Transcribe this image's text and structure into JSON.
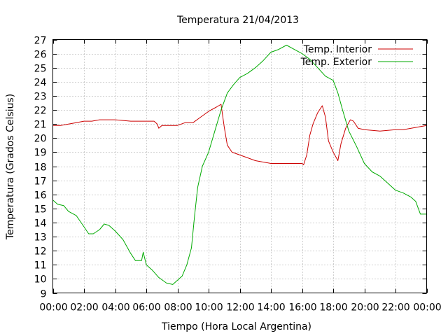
{
  "chart_data": {
    "type": "line",
    "title": "Temperatura 21/04/2013",
    "xlabel": "Tiempo (Hora Local Argentina)",
    "ylabel": "Temperatura (Grados Celsius)",
    "xlim": [
      "00:00",
      "24:00"
    ],
    "ylim": [
      9,
      27
    ],
    "grid": true,
    "legend_position": "top-right",
    "x_ticks": [
      "00:00",
      "02:00",
      "04:00",
      "06:00",
      "08:00",
      "10:00",
      "12:00",
      "14:00",
      "16:00",
      "18:00",
      "20:00",
      "22:00",
      "00:00"
    ],
    "y_ticks": [
      9,
      10,
      11,
      12,
      13,
      14,
      15,
      16,
      17,
      18,
      19,
      20,
      21,
      22,
      23,
      24,
      25,
      26,
      27
    ],
    "series": [
      {
        "name": "Temp. Interior",
        "color": "#cc0000",
        "points": [
          [
            0.0,
            20.9
          ],
          [
            0.5,
            20.9
          ],
          [
            1.0,
            21.0
          ],
          [
            1.5,
            21.1
          ],
          [
            2.0,
            21.2
          ],
          [
            2.5,
            21.2
          ],
          [
            3.0,
            21.3
          ],
          [
            4.0,
            21.3
          ],
          [
            5.0,
            21.2
          ],
          [
            6.0,
            21.2
          ],
          [
            6.5,
            21.2
          ],
          [
            6.7,
            21.0
          ],
          [
            6.8,
            20.7
          ],
          [
            7.0,
            20.9
          ],
          [
            8.0,
            20.9
          ],
          [
            8.5,
            21.1
          ],
          [
            9.0,
            21.1
          ],
          [
            9.5,
            21.5
          ],
          [
            10.0,
            21.9
          ],
          [
            10.5,
            22.2
          ],
          [
            10.8,
            22.4
          ],
          [
            11.0,
            20.8
          ],
          [
            11.2,
            19.5
          ],
          [
            11.5,
            19.0
          ],
          [
            12.0,
            18.8
          ],
          [
            12.5,
            18.6
          ],
          [
            13.0,
            18.4
          ],
          [
            14.0,
            18.2
          ],
          [
            15.0,
            18.2
          ],
          [
            16.0,
            18.2
          ],
          [
            16.1,
            18.1
          ],
          [
            16.3,
            18.8
          ],
          [
            16.5,
            20.2
          ],
          [
            16.7,
            21.0
          ],
          [
            17.0,
            21.8
          ],
          [
            17.3,
            22.3
          ],
          [
            17.5,
            21.5
          ],
          [
            17.7,
            19.8
          ],
          [
            18.0,
            19.0
          ],
          [
            18.3,
            18.4
          ],
          [
            18.5,
            19.6
          ],
          [
            18.8,
            20.7
          ],
          [
            19.1,
            21.3
          ],
          [
            19.3,
            21.2
          ],
          [
            19.6,
            20.7
          ],
          [
            20.0,
            20.6
          ],
          [
            21.0,
            20.5
          ],
          [
            22.0,
            20.6
          ],
          [
            22.5,
            20.6
          ],
          [
            23.0,
            20.7
          ],
          [
            23.5,
            20.8
          ],
          [
            24.0,
            20.9
          ]
        ]
      },
      {
        "name": "Temp. Exterior",
        "color": "#00aa00",
        "points": [
          [
            0.0,
            15.6
          ],
          [
            0.3,
            15.3
          ],
          [
            0.7,
            15.2
          ],
          [
            1.0,
            14.8
          ],
          [
            1.5,
            14.5
          ],
          [
            2.0,
            13.7
          ],
          [
            2.3,
            13.2
          ],
          [
            2.6,
            13.2
          ],
          [
            3.0,
            13.5
          ],
          [
            3.3,
            13.9
          ],
          [
            3.6,
            13.8
          ],
          [
            4.0,
            13.4
          ],
          [
            4.5,
            12.8
          ],
          [
            5.0,
            11.8
          ],
          [
            5.3,
            11.3
          ],
          [
            5.7,
            11.3
          ],
          [
            5.8,
            11.9
          ],
          [
            6.0,
            11.0
          ],
          [
            6.4,
            10.6
          ],
          [
            6.8,
            10.1
          ],
          [
            7.3,
            9.7
          ],
          [
            7.7,
            9.6
          ],
          [
            8.0,
            9.9
          ],
          [
            8.3,
            10.2
          ],
          [
            8.6,
            11.0
          ],
          [
            8.9,
            12.2
          ],
          [
            9.1,
            14.5
          ],
          [
            9.3,
            16.5
          ],
          [
            9.6,
            18.0
          ],
          [
            10.0,
            19.0
          ],
          [
            10.4,
            20.5
          ],
          [
            10.8,
            22.0
          ],
          [
            11.2,
            23.2
          ],
          [
            11.6,
            23.8
          ],
          [
            12.0,
            24.3
          ],
          [
            12.5,
            24.6
          ],
          [
            13.0,
            25.0
          ],
          [
            13.5,
            25.5
          ],
          [
            14.0,
            26.1
          ],
          [
            14.5,
            26.3
          ],
          [
            15.0,
            26.6
          ],
          [
            15.5,
            26.3
          ],
          [
            16.0,
            26.0
          ],
          [
            16.5,
            25.6
          ],
          [
            17.0,
            25.0
          ],
          [
            17.5,
            24.4
          ],
          [
            18.0,
            24.1
          ],
          [
            18.3,
            23.2
          ],
          [
            18.6,
            22.0
          ],
          [
            19.0,
            20.5
          ],
          [
            19.5,
            19.4
          ],
          [
            20.0,
            18.2
          ],
          [
            20.5,
            17.6
          ],
          [
            21.0,
            17.3
          ],
          [
            21.5,
            16.8
          ],
          [
            22.0,
            16.3
          ],
          [
            22.5,
            16.1
          ],
          [
            23.0,
            15.8
          ],
          [
            23.3,
            15.5
          ],
          [
            23.6,
            14.6
          ],
          [
            24.0,
            14.6
          ]
        ]
      }
    ]
  }
}
